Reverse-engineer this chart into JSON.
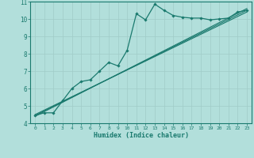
{
  "xlabel": "Humidex (Indice chaleur)",
  "background_color": "#b2dfdb",
  "grid_color": "#c0e0dc",
  "line_color": "#1a7a6e",
  "xlim": [
    -0.5,
    23.5
  ],
  "ylim": [
    4,
    11
  ],
  "xticks": [
    0,
    1,
    2,
    3,
    4,
    5,
    6,
    7,
    8,
    9,
    10,
    11,
    12,
    13,
    14,
    15,
    16,
    17,
    18,
    19,
    20,
    21,
    22,
    23
  ],
  "yticks": [
    4,
    5,
    6,
    7,
    8,
    9,
    10,
    11
  ],
  "wavy_x": [
    0,
    1,
    2,
    3,
    4,
    5,
    6,
    7,
    8,
    9,
    10,
    11,
    12,
    13,
    14,
    15,
    16,
    17,
    18,
    19,
    20,
    21,
    22,
    23
  ],
  "wavy_y": [
    4.45,
    4.6,
    4.6,
    5.3,
    6.0,
    6.4,
    6.5,
    7.0,
    7.5,
    7.3,
    8.2,
    10.3,
    9.95,
    10.85,
    10.5,
    10.2,
    10.1,
    10.05,
    10.05,
    9.95,
    10.0,
    10.05,
    10.4,
    10.5
  ],
  "line1_x": [
    0,
    23
  ],
  "line1_y": [
    4.45,
    10.5
  ],
  "line2_x": [
    0,
    23
  ],
  "line2_y": [
    4.4,
    10.6
  ],
  "line3_x": [
    0,
    23
  ],
  "line3_y": [
    4.5,
    10.4
  ]
}
